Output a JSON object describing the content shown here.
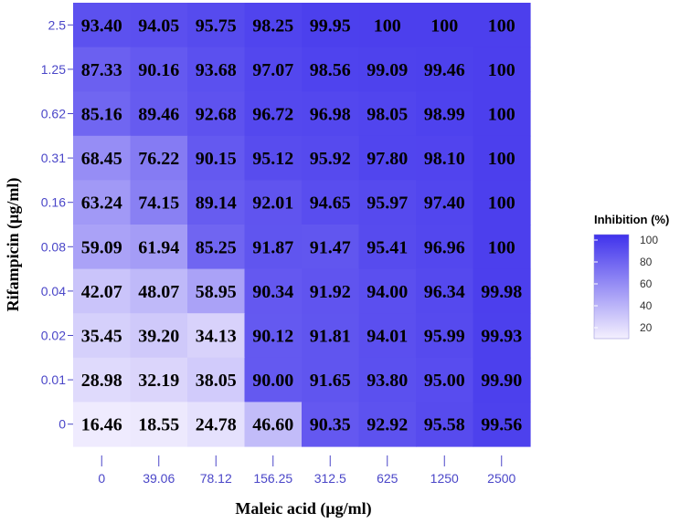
{
  "chart_data": {
    "type": "heatmap",
    "xlabel": "Maleic acid  (μg/ml)",
    "ylabel": "Rifampicin  (μg/ml)",
    "x_categories": [
      "0",
      "39.06",
      "78.12",
      "156.25",
      "312.5",
      "625",
      "1250",
      "2500"
    ],
    "y_categories": [
      "2.5",
      "1.25",
      "0.62",
      "0.31",
      "0.16",
      "0.08",
      "0.04",
      "0.02",
      "0.01",
      "0"
    ],
    "values": [
      [
        "93.40",
        "94.05",
        "95.75",
        "98.25",
        "99.95",
        "100",
        "100",
        "100"
      ],
      [
        "87.33",
        "90.16",
        "93.68",
        "97.07",
        "98.56",
        "99.09",
        "99.46",
        "100"
      ],
      [
        "85.16",
        "89.46",
        "92.68",
        "96.72",
        "96.98",
        "98.05",
        "98.99",
        "100"
      ],
      [
        "68.45",
        "76.22",
        "90.15",
        "95.12",
        "95.92",
        "97.80",
        "98.10",
        "100"
      ],
      [
        "63.24",
        "74.15",
        "89.14",
        "92.01",
        "94.65",
        "95.97",
        "97.40",
        "100"
      ],
      [
        "59.09",
        "61.94",
        "85.25",
        "91.87",
        "91.47",
        "95.41",
        "96.96",
        "100"
      ],
      [
        "42.07",
        "48.07",
        "58.95",
        "90.34",
        "91.92",
        "94.00",
        "96.34",
        "99.98"
      ],
      [
        "35.45",
        "39.20",
        "34.13",
        "90.12",
        "91.81",
        "94.01",
        "95.99",
        "99.93"
      ],
      [
        "28.98",
        "32.19",
        "38.05",
        "90.00",
        "91.65",
        "93.80",
        "95.00",
        "99.90"
      ],
      [
        "16.46",
        "18.55",
        "24.78",
        "46.60",
        "90.35",
        "92.92",
        "95.58",
        "99.56"
      ]
    ],
    "legend": {
      "title": "Inhibition  (%)",
      "ticks": [
        "100",
        "80",
        "60",
        "40",
        "20"
      ],
      "range": [
        10,
        105
      ],
      "placement": "right"
    },
    "colors": {
      "low": "#f4f0fe",
      "high": "#3f32ec",
      "tick_text": "#4a46c8"
    }
  }
}
